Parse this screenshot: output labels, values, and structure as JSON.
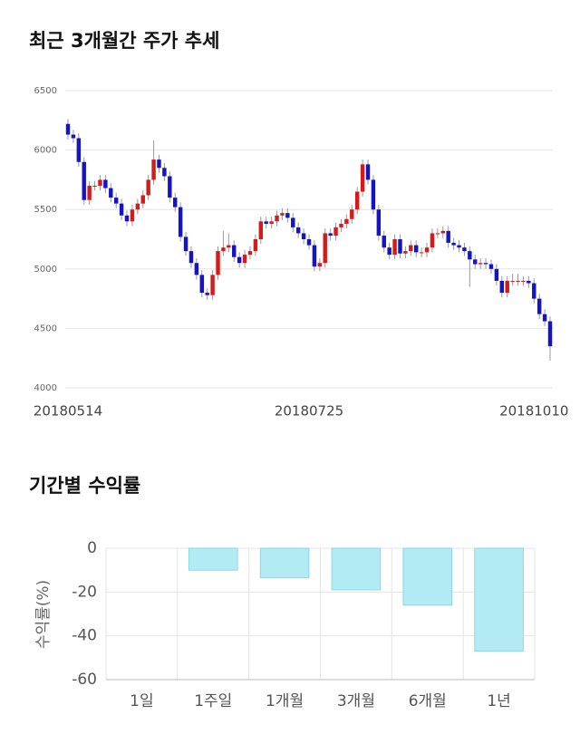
{
  "chart_data": [
    {
      "type": "candlestick",
      "title": "최근 3개월간 주가 추세",
      "categories": [
        "20180514",
        null,
        null,
        null,
        null,
        null,
        null,
        null,
        null,
        null,
        null,
        null,
        null,
        null,
        null,
        null,
        null,
        null,
        null,
        null,
        null,
        null,
        null,
        null,
        null,
        null,
        null,
        null,
        null,
        null,
        null,
        null,
        null,
        null,
        null,
        null,
        null,
        null,
        null,
        null,
        null,
        null,
        null,
        null,
        null,
        "20180725",
        null,
        null,
        null,
        null,
        null,
        null,
        null,
        null,
        null,
        null,
        null,
        null,
        null,
        null,
        null,
        null,
        null,
        null,
        null,
        null,
        null,
        null,
        null,
        null,
        null,
        null,
        null,
        null,
        null,
        null,
        null,
        null,
        null,
        null,
        null,
        null,
        null,
        null,
        null,
        null,
        null,
        "20181010",
        null,
        null,
        null
      ],
      "open": [
        6220,
        6130,
        6100,
        5900,
        5580,
        5700,
        5700,
        5750,
        5680,
        5600,
        5550,
        5450,
        5400,
        5500,
        5550,
        5620,
        5750,
        5920,
        5850,
        5780,
        5600,
        5520,
        5270,
        5150,
        5050,
        4950,
        4800,
        4780,
        4950,
        5150,
        5180,
        5200,
        5100,
        5050,
        5120,
        5150,
        5250,
        5400,
        5380,
        5400,
        5450,
        5470,
        5430,
        5350,
        5300,
        5250,
        5200,
        5020,
        5050,
        5300,
        5280,
        5350,
        5380,
        5420,
        5500,
        5650,
        5880,
        5750,
        5500,
        5280,
        5180,
        5120,
        5250,
        5130,
        5150,
        5200,
        5140,
        5140,
        5180,
        5300,
        5300,
        5320,
        5220,
        5200,
        5180,
        5150,
        5080,
        5040,
        5050,
        5040,
        5000,
        4900,
        4800,
        4900,
        4900,
        4900,
        4900,
        4880,
        4750,
        4620,
        4560
      ],
      "high": [
        6260,
        6170,
        6140,
        5940,
        5740,
        5740,
        5790,
        5790,
        5720,
        5640,
        5590,
        5490,
        5540,
        5590,
        5660,
        5790,
        6080,
        5960,
        5890,
        5820,
        5640,
        5560,
        5310,
        5190,
        5090,
        4990,
        4840,
        4990,
        5190,
        5320,
        5300,
        5240,
        5140,
        5160,
        5190,
        5290,
        5440,
        5440,
        5440,
        5490,
        5510,
        5510,
        5470,
        5390,
        5340,
        5290,
        5240,
        5090,
        5340,
        5340,
        5390,
        5420,
        5460,
        5540,
        5690,
        5920,
        5920,
        5790,
        5540,
        5320,
        5220,
        5290,
        5290,
        5190,
        5240,
        5240,
        5180,
        5220,
        5340,
        5340,
        5360,
        5360,
        5260,
        5240,
        5220,
        5190,
        5120,
        5090,
        5090,
        5080,
        5040,
        4940,
        4940,
        4960,
        4960,
        4940,
        4940,
        4920,
        4790,
        4660,
        4600
      ],
      "low": [
        6090,
        6060,
        5860,
        5540,
        5540,
        5660,
        5660,
        5640,
        5560,
        5510,
        5410,
        5360,
        5360,
        5460,
        5510,
        5580,
        5710,
        5810,
        5740,
        5560,
        5480,
        5230,
        5110,
        5010,
        4910,
        4760,
        4740,
        4740,
        4910,
        5110,
        5140,
        5060,
        5010,
        5010,
        5080,
        5110,
        5210,
        5340,
        5340,
        5360,
        5410,
        5390,
        5310,
        5260,
        5210,
        5160,
        4980,
        4980,
        5010,
        5240,
        5240,
        5310,
        5340,
        5380,
        5460,
        5610,
        5710,
        5460,
        5240,
        5140,
        5080,
        5080,
        5090,
        5090,
        5110,
        5100,
        5100,
        5100,
        5140,
        5260,
        5260,
        5180,
        5160,
        5140,
        5110,
        4850,
        5000,
        5000,
        5000,
        4960,
        4860,
        4760,
        4760,
        4860,
        4860,
        4860,
        4840,
        4710,
        4580,
        4520,
        4230
      ],
      "close": [
        6130,
        6100,
        5900,
        5580,
        5700,
        5700,
        5750,
        5680,
        5600,
        5550,
        5450,
        5400,
        5500,
        5550,
        5620,
        5750,
        5920,
        5850,
        5780,
        5600,
        5520,
        5270,
        5150,
        5050,
        4950,
        4800,
        4780,
        4950,
        5150,
        5180,
        5200,
        5100,
        5050,
        5120,
        5150,
        5250,
        5400,
        5380,
        5400,
        5450,
        5470,
        5430,
        5350,
        5300,
        5250,
        5200,
        5020,
        5050,
        5300,
        5280,
        5350,
        5380,
        5420,
        5500,
        5650,
        5880,
        5750,
        5500,
        5280,
        5180,
        5120,
        5250,
        5130,
        5150,
        5200,
        5140,
        5140,
        5180,
        5300,
        5300,
        5320,
        5220,
        5200,
        5180,
        5150,
        5080,
        5040,
        5050,
        5040,
        5000,
        4900,
        4800,
        4900,
        4900,
        4900,
        4900,
        4880,
        4750,
        4620,
        4560,
        4350
      ],
      "colors": {
        "up": "#d61a1a",
        "down": "#1414c4"
      },
      "ylim": [
        4000,
        6500
      ],
      "yticks": [
        4000,
        4500,
        5000,
        5500,
        6000,
        6500
      ],
      "grid": true
    },
    {
      "type": "bar",
      "title": "기간별 수익률",
      "y_label": "수익률(%)",
      "categories": [
        "1일",
        "1주일",
        "1개월",
        "3개월",
        "6개월",
        "1년"
      ],
      "values": [
        0,
        -10,
        -13.5,
        -19,
        -26,
        -47
      ],
      "color": "#b3ebf5",
      "edge_color": "#8fd6e4",
      "ylim": [
        -60,
        0
      ],
      "yticks": [
        0,
        -20,
        -40,
        -60
      ],
      "grid": true
    }
  ]
}
